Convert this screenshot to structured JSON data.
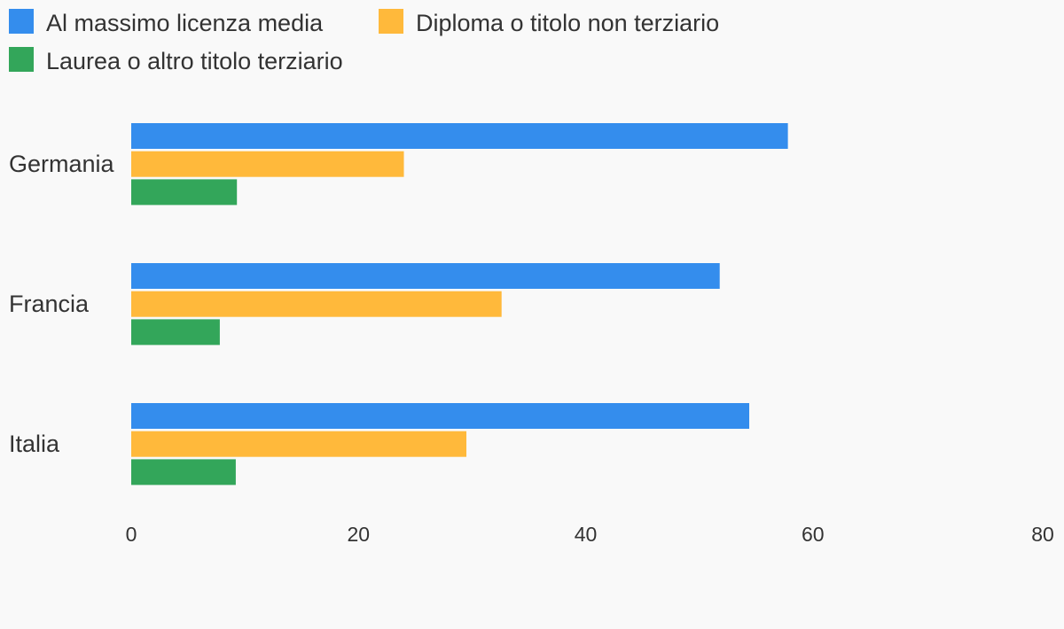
{
  "chart_data": {
    "type": "bar",
    "orientation": "horizontal",
    "categories": [
      "Germania",
      "Francia",
      "Italia"
    ],
    "series": [
      {
        "name": "Al massimo licenza media",
        "color": "#348ded",
        "values": [
          57.8,
          51.8,
          54.4
        ]
      },
      {
        "name": "Diploma o titolo non terziario",
        "color": "#ffb93b",
        "values": [
          24.0,
          32.6,
          29.5
        ]
      },
      {
        "name": "Laurea o altro titolo terziario",
        "color": "#33a65a",
        "values": [
          9.3,
          7.8,
          9.2
        ]
      }
    ],
    "xlim": [
      0,
      80
    ],
    "xticks": [
      "0",
      "20",
      "40",
      "60",
      "80"
    ],
    "grid": false,
    "legend_position": "top-left",
    "title": "",
    "xlabel": "",
    "ylabel": ""
  }
}
